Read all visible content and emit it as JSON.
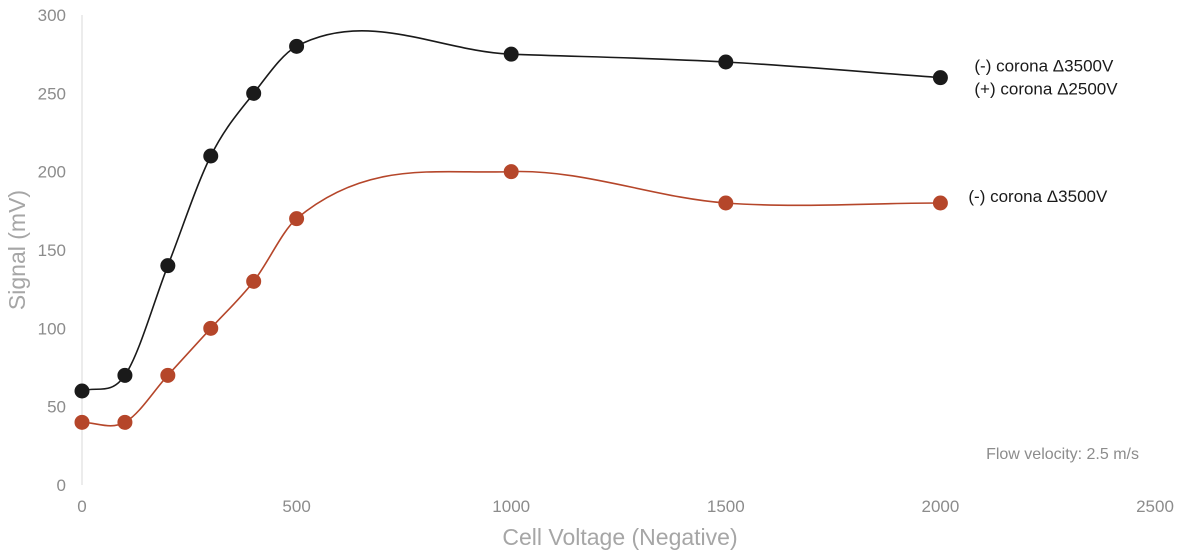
{
  "chart_data": {
    "type": "line",
    "xlabel": "Cell Voltage (Negative)",
    "ylabel": "Signal (mV)",
    "xlim": [
      0,
      2500
    ],
    "ylim": [
      0,
      300
    ],
    "xticks": [
      0,
      500,
      1000,
      1500,
      2000,
      2500
    ],
    "yticks": [
      0,
      50,
      100,
      150,
      200,
      250,
      300
    ],
    "grid": false,
    "smooth": true,
    "x": [
      0,
      100,
      200,
      300,
      400,
      500,
      1000,
      1500,
      2000
    ],
    "series": [
      {
        "labels": [
          "(-) corona Δ3500V",
          "(+) corona Δ2500V"
        ],
        "color": "#1a1a1a",
        "values": [
          60,
          70,
          140,
          210,
          250,
          280,
          275,
          270,
          260
        ]
      },
      {
        "labels": [
          "(-) corona Δ3500V"
        ],
        "color": "#b5462a",
        "values": [
          40,
          40,
          70,
          100,
          130,
          170,
          200,
          180,
          180
        ]
      }
    ],
    "annotation": "Flow velocity: 2.5 m/s"
  }
}
